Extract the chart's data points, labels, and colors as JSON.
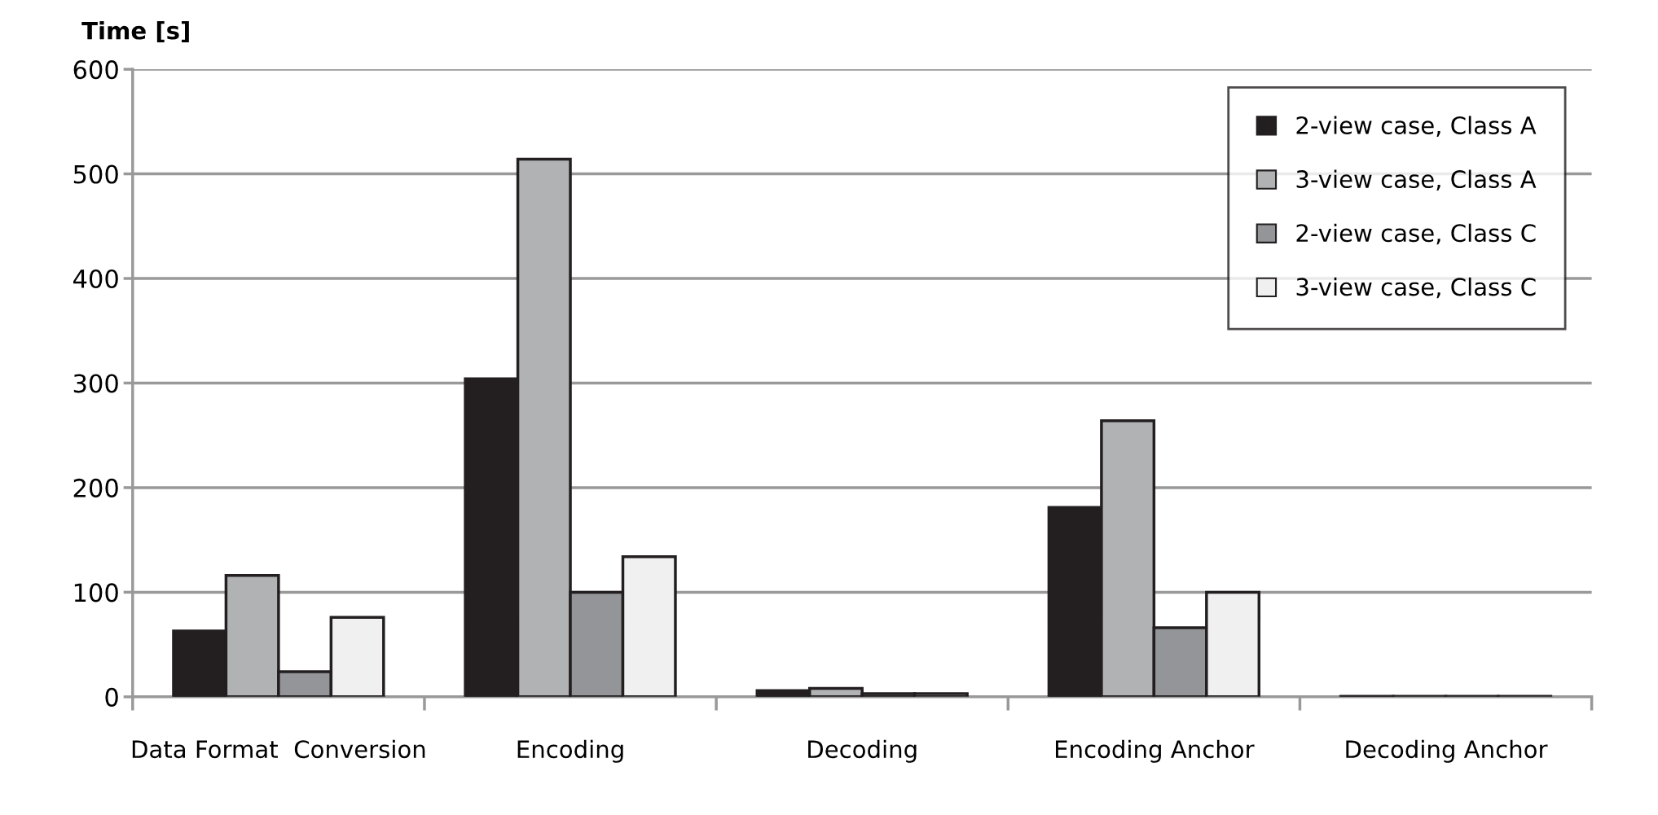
{
  "chart_data": {
    "type": "bar",
    "ylabel": "Time [s]",
    "categories": [
      "Data Format  Conversion",
      "Encoding",
      "Decoding",
      "Encoding Anchor",
      "Decoding Anchor"
    ],
    "series": [
      {
        "name": "2-view case, Class A",
        "color": "#231f20",
        "values": [
          63,
          304,
          6,
          181,
          0.5
        ]
      },
      {
        "name": "3-view case, Class A",
        "color": "#b1b2b4",
        "values": [
          116,
          514,
          8,
          264,
          0.5
        ]
      },
      {
        "name": "2-view case, Class C",
        "color": "#949598",
        "values": [
          24,
          100,
          3,
          66,
          0.5
        ]
      },
      {
        "name": "3-view case, Class C",
        "color": "#f0f0f0",
        "values": [
          76,
          134,
          3,
          100,
          0.5
        ]
      }
    ],
    "ylim": [
      0,
      600
    ],
    "yticks": [
      0,
      100,
      200,
      300,
      400,
      500,
      600
    ],
    "grid": "y",
    "legend": "top right"
  }
}
